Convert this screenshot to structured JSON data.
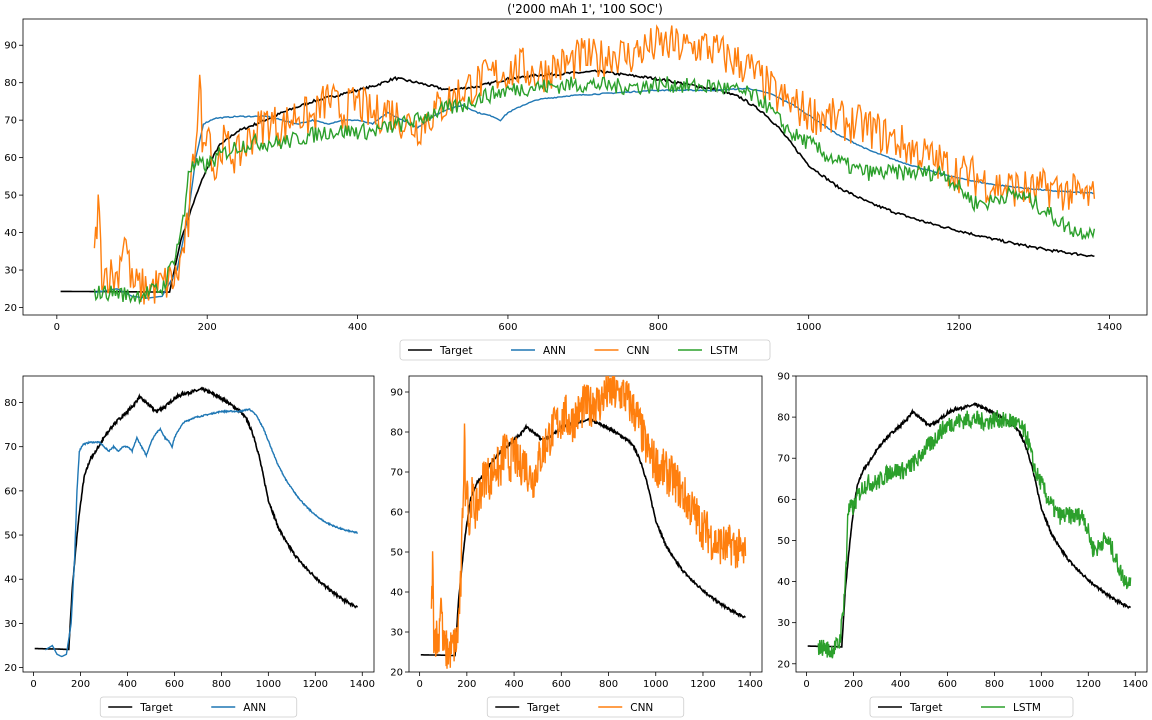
{
  "figure_title": "('2000 mAh 1', '100 SOC')",
  "colors": {
    "Target": "#000000",
    "ANN": "#1f77b4",
    "CNN": "#ff7f0e",
    "LSTM": "#2ca02c"
  },
  "legends": {
    "main": [
      "Target",
      "ANN",
      "CNN",
      "LSTM"
    ],
    "ann": [
      "Target",
      "ANN"
    ],
    "cnn": [
      "Target",
      "CNN"
    ],
    "lstm": [
      "Target",
      "LSTM"
    ]
  },
  "chart_data": [
    {
      "type": "line",
      "title": "('2000 mAh 1', '100 SOC')",
      "xlim": [
        -45,
        1450
      ],
      "ylim": [
        18,
        97
      ],
      "xticks": [
        0,
        200,
        400,
        600,
        800,
        1000,
        1200,
        1400
      ],
      "yticks": [
        20,
        30,
        40,
        50,
        60,
        70,
        80,
        90
      ],
      "grid": false,
      "legend": "bottom-center",
      "series": [
        {
          "name": "Target",
          "points": [
            [
              5,
              24.3
            ],
            [
              100,
              24.2
            ],
            [
              150,
              24.1
            ],
            [
              153,
              27
            ],
            [
              165,
              38
            ],
            [
              180,
              47
            ],
            [
              195,
              55
            ],
            [
              215,
              63
            ],
            [
              240,
              67
            ],
            [
              265,
              69
            ],
            [
              300,
              72
            ],
            [
              340,
              75
            ],
            [
              380,
              77
            ],
            [
              420,
              79
            ],
            [
              450,
              81.2
            ],
            [
              480,
              80
            ],
            [
              500,
              79
            ],
            [
              520,
              78
            ],
            [
              560,
              79
            ],
            [
              600,
              81
            ],
            [
              640,
              82
            ],
            [
              680,
              82.5
            ],
            [
              720,
              83
            ],
            [
              760,
              82
            ],
            [
              800,
              81
            ],
            [
              840,
              79.5
            ],
            [
              880,
              78
            ],
            [
              910,
              76
            ],
            [
              940,
              72
            ],
            [
              960,
              68
            ],
            [
              980,
              63
            ],
            [
              1000,
              58
            ],
            [
              1040,
              52
            ],
            [
              1080,
              48
            ],
            [
              1120,
              45
            ],
            [
              1160,
              42.5
            ],
            [
              1200,
              40.5
            ],
            [
              1240,
              38.5
            ],
            [
              1280,
              36.8
            ],
            [
              1320,
              35.3
            ],
            [
              1360,
              34.2
            ],
            [
              1380,
              33.7
            ]
          ]
        },
        {
          "name": "ANN",
          "points": [
            [
              50,
              24
            ],
            [
              80,
              25
            ],
            [
              100,
              23
            ],
            [
              120,
              22.5
            ],
            [
              140,
              23
            ],
            [
              160,
              30
            ],
            [
              175,
              45
            ],
            [
              185,
              60
            ],
            [
              195,
              69
            ],
            [
              210,
              70.5
            ],
            [
              240,
              71
            ],
            [
              280,
              71
            ],
            [
              300,
              70
            ],
            [
              320,
              69
            ],
            [
              340,
              70
            ],
            [
              360,
              69
            ],
            [
              380,
              70
            ],
            [
              400,
              70
            ],
            [
              420,
              69
            ],
            [
              440,
              72
            ],
            [
              460,
              70
            ],
            [
              480,
              68
            ],
            [
              500,
              71
            ],
            [
              520,
              73
            ],
            [
              540,
              74
            ],
            [
              560,
              72
            ],
            [
              580,
              71
            ],
            [
              590,
              70
            ],
            [
              600,
              72
            ],
            [
              620,
              74
            ],
            [
              640,
              75.5
            ],
            [
              680,
              76.5
            ],
            [
              720,
              77
            ],
            [
              760,
              77.5
            ],
            [
              800,
              78
            ],
            [
              840,
              78
            ],
            [
              880,
              78
            ],
            [
              920,
              78.5
            ],
            [
              950,
              77
            ],
            [
              980,
              74
            ],
            [
              1010,
              70
            ],
            [
              1040,
              66
            ],
            [
              1080,
              62
            ],
            [
              1120,
              59
            ],
            [
              1160,
              56.5
            ],
            [
              1200,
              54.5
            ],
            [
              1240,
              53
            ],
            [
              1280,
              52
            ],
            [
              1320,
              51.2
            ],
            [
              1360,
              50.7
            ],
            [
              1380,
              50.5
            ]
          ]
        },
        {
          "name": "CNN",
          "points": [
            [
              50,
              33
            ],
            [
              55,
              48
            ],
            [
              60,
              30
            ],
            [
              80,
              28
            ],
            [
              90,
              40
            ],
            [
              100,
              26
            ],
            [
              120,
              25
            ],
            [
              140,
              26
            ],
            [
              160,
              28
            ],
            [
              175,
              42
            ],
            [
              185,
              67
            ],
            [
              190,
              80
            ],
            [
              195,
              60
            ],
            [
              200,
              72
            ],
            [
              210,
              55
            ],
            [
              220,
              64
            ],
            [
              240,
              60
            ],
            [
              260,
              66
            ],
            [
              280,
              70
            ],
            [
              300,
              68
            ],
            [
              320,
              72
            ],
            [
              340,
              70
            ],
            [
              360,
              76
            ],
            [
              380,
              72
            ],
            [
              400,
              75
            ],
            [
              420,
              71
            ],
            [
              440,
              73
            ],
            [
              460,
              70
            ],
            [
              480,
              68
            ],
            [
              500,
              72
            ],
            [
              520,
              75
            ],
            [
              540,
              78
            ],
            [
              560,
              80
            ],
            [
              580,
              82
            ],
            [
              600,
              83
            ],
            [
              620,
              84
            ],
            [
              640,
              82
            ],
            [
              660,
              84
            ],
            [
              680,
              85
            ],
            [
              700,
              87
            ],
            [
              720,
              86
            ],
            [
              740,
              88
            ],
            [
              760,
              87
            ],
            [
              780,
              89
            ],
            [
              800,
              90
            ],
            [
              820,
              90
            ],
            [
              840,
              89
            ],
            [
              860,
              90
            ],
            [
              880,
              88
            ],
            [
              900,
              86
            ],
            [
              920,
              84
            ],
            [
              940,
              80
            ],
            [
              960,
              76
            ],
            [
              980,
              74
            ],
            [
              1000,
              72
            ],
            [
              1020,
              71
            ],
            [
              1040,
              70
            ],
            [
              1060,
              69
            ],
            [
              1080,
              68
            ],
            [
              1100,
              66
            ],
            [
              1120,
              64
            ],
            [
              1140,
              62
            ],
            [
              1160,
              60
            ],
            [
              1180,
              58
            ],
            [
              1200,
              56
            ],
            [
              1220,
              55
            ],
            [
              1240,
              53
            ],
            [
              1260,
              52
            ],
            [
              1280,
              52
            ],
            [
              1300,
              51
            ],
            [
              1320,
              52
            ],
            [
              1340,
              51
            ],
            [
              1360,
              50
            ],
            [
              1380,
              49
            ]
          ]
        },
        {
          "name": "LSTM",
          "points": [
            [
              50,
              24
            ],
            [
              80,
              24
            ],
            [
              100,
              23
            ],
            [
              120,
              24
            ],
            [
              140,
              25
            ],
            [
              150,
              30
            ],
            [
              160,
              36
            ],
            [
              170,
              45
            ],
            [
              175,
              57
            ],
            [
              190,
              58
            ],
            [
              200,
              58
            ],
            [
              220,
              61
            ],
            [
              240,
              63
            ],
            [
              260,
              64
            ],
            [
              280,
              64
            ],
            [
              300,
              64
            ],
            [
              320,
              65
            ],
            [
              340,
              66
            ],
            [
              360,
              67
            ],
            [
              380,
              67
            ],
            [
              400,
              67
            ],
            [
              420,
              67
            ],
            [
              440,
              68
            ],
            [
              460,
              69
            ],
            [
              480,
              70
            ],
            [
              500,
              72
            ],
            [
              520,
              73
            ],
            [
              540,
              74
            ],
            [
              560,
              76
            ],
            [
              580,
              77
            ],
            [
              600,
              78
            ],
            [
              620,
              78.5
            ],
            [
              640,
              79
            ],
            [
              660,
              79
            ],
            [
              680,
              79.5
            ],
            [
              700,
              79.5
            ],
            [
              720,
              79.5
            ],
            [
              740,
              79
            ],
            [
              760,
              79
            ],
            [
              780,
              79
            ],
            [
              800,
              79.5
            ],
            [
              820,
              79.5
            ],
            [
              840,
              79
            ],
            [
              860,
              79
            ],
            [
              880,
              79
            ],
            [
              900,
              78
            ],
            [
              920,
              77
            ],
            [
              940,
              75
            ],
            [
              960,
              70
            ],
            [
              980,
              66
            ],
            [
              1000,
              64
            ],
            [
              1020,
              61
            ],
            [
              1040,
              59
            ],
            [
              1060,
              57
            ],
            [
              1080,
              56
            ],
            [
              1100,
              56
            ],
            [
              1120,
              56
            ],
            [
              1140,
              56
            ],
            [
              1160,
              56
            ],
            [
              1180,
              56
            ],
            [
              1200,
              52
            ],
            [
              1220,
              48
            ],
            [
              1240,
              48
            ],
            [
              1260,
              50
            ],
            [
              1280,
              50
            ],
            [
              1300,
              48
            ],
            [
              1320,
              45
            ],
            [
              1340,
              42
            ],
            [
              1360,
              40
            ],
            [
              1380,
              41
            ]
          ]
        }
      ]
    },
    {
      "type": "line",
      "xlim": [
        -45,
        1450
      ],
      "ylim": [
        19,
        86
      ],
      "xticks": [
        0,
        200,
        400,
        600,
        800,
        1000,
        1200,
        1400
      ],
      "yticks": [
        20,
        30,
        40,
        50,
        60,
        70,
        80
      ],
      "grid": false,
      "legend": "bottom-center",
      "series": [
        {
          "name": "Target",
          "ref": 0
        },
        {
          "name": "ANN",
          "ref": 1
        }
      ]
    },
    {
      "type": "line",
      "xlim": [
        -45,
        1450
      ],
      "ylim": [
        20,
        94
      ],
      "xticks": [
        0,
        200,
        400,
        600,
        800,
        1000,
        1200,
        1400
      ],
      "yticks": [
        20,
        30,
        40,
        50,
        60,
        70,
        80,
        90
      ],
      "grid": false,
      "legend": "bottom-center",
      "series": [
        {
          "name": "Target",
          "ref": 0
        },
        {
          "name": "CNN",
          "ref": 2
        }
      ]
    },
    {
      "type": "line",
      "xlim": [
        -45,
        1450
      ],
      "ylim": [
        18,
        90
      ],
      "xticks": [
        0,
        200,
        400,
        600,
        800,
        1000,
        1200,
        1400
      ],
      "yticks": [
        20,
        30,
        40,
        50,
        60,
        70,
        80,
        90
      ],
      "grid": false,
      "legend": "bottom-center",
      "series": [
        {
          "name": "Target",
          "ref": 0
        },
        {
          "name": "LSTM",
          "ref": 3
        }
      ]
    }
  ]
}
